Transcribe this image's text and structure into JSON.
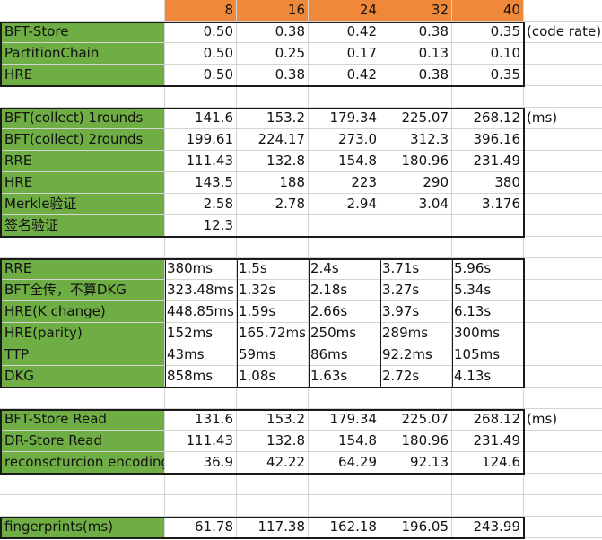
{
  "header_values": [
    "8",
    "16",
    "24",
    "32",
    "40"
  ],
  "rows": [
    {
      "label": "",
      "values": [],
      "note": "",
      "style": "header"
    },
    {
      "label": "BFT-Store",
      "values": [
        "0.50",
        "0.38",
        "0.42",
        "0.38",
        "0.35"
      ],
      "note": "(code rate)",
      "style": "num"
    },
    {
      "label": "PartitionChain",
      "values": [
        "0.50",
        "0.25",
        "0.17",
        "0.13",
        "0.10"
      ],
      "note": "",
      "style": "num"
    },
    {
      "label": "HRE",
      "values": [
        "0.50",
        "0.38",
        "0.42",
        "0.38",
        "0.35"
      ],
      "note": "",
      "style": "num"
    },
    {
      "label": "",
      "values": [],
      "note": "",
      "style": "blank"
    },
    {
      "label": "BFT(collect)  1rounds",
      "values": [
        "141.6",
        "153.2",
        "179.34",
        "225.07",
        "268.12"
      ],
      "note": "(ms)",
      "style": "num"
    },
    {
      "label": "BFT(collect)  2rounds",
      "values": [
        "199.61",
        "224.17",
        "273.0",
        "312.3",
        "396.16"
      ],
      "note": "",
      "style": "num"
    },
    {
      "label": "RRE",
      "values": [
        "111.43",
        "132.8",
        "154.8",
        "180.96",
        "231.49"
      ],
      "note": "",
      "style": "num"
    },
    {
      "label": "HRE",
      "values": [
        "143.5",
        "188",
        "223",
        "290",
        "380"
      ],
      "note": "",
      "style": "num"
    },
    {
      "label": "Merkle验证",
      "values": [
        "2.58",
        "2.78",
        "2.94",
        "3.04",
        "3.176"
      ],
      "note": "",
      "style": "num"
    },
    {
      "label": "签名验证",
      "values": [
        "12.3",
        "",
        "",
        "",
        ""
      ],
      "note": "",
      "style": "num"
    },
    {
      "label": "",
      "values": [],
      "note": "",
      "style": "blank"
    },
    {
      "label": "RRE",
      "values": [
        "380ms",
        "1.5s",
        "2.4s",
        "3.71s",
        "5.96s"
      ],
      "note": "",
      "style": "txt"
    },
    {
      "label": "BFT全传，不算DKG",
      "values": [
        "323.48ms",
        "1.32s",
        "2.18s",
        "3.27s",
        "5.34s"
      ],
      "note": "",
      "style": "txt"
    },
    {
      "label": "HRE(K change)",
      "values": [
        "448.85ms",
        "1.59s",
        "2.66s",
        "3.97s",
        "6.13s"
      ],
      "note": "",
      "style": "txt"
    },
    {
      "label": "HRE(parity)",
      "values": [
        "152ms",
        "165.72ms",
        "250ms",
        "289ms",
        "300ms"
      ],
      "note": "",
      "style": "txt"
    },
    {
      "label": "TTP",
      "values": [
        "43ms",
        "59ms",
        "86ms",
        "92.2ms",
        "105ms"
      ],
      "note": "",
      "style": "txt"
    },
    {
      "label": "DKG",
      "values": [
        "858ms",
        "1.08s",
        "1.63s",
        "2.72s",
        "4.13s"
      ],
      "note": "",
      "style": "txt"
    },
    {
      "label": "",
      "values": [],
      "note": "",
      "style": "blank"
    },
    {
      "label": "BFT-Store Read",
      "values": [
        "131.6",
        "153.2",
        "179.34",
        "225.07",
        "268.12"
      ],
      "note": "(ms)",
      "style": "num"
    },
    {
      "label": "DR-Store Read",
      "values": [
        "111.43",
        "132.8",
        "154.8",
        "180.96",
        "231.49"
      ],
      "note": "",
      "style": "num"
    },
    {
      "label": "reconscturcion encoding",
      "values": [
        "36.9",
        "42.22",
        "64.29",
        "92.13",
        "124.6"
      ],
      "note": "",
      "style": "num"
    },
    {
      "label": "",
      "values": [],
      "note": "",
      "style": "blank"
    },
    {
      "label": "",
      "values": [],
      "note": "",
      "style": "blank"
    },
    {
      "label": "fingerprints(ms)",
      "values": [
        "61.78",
        "117.38",
        "162.18",
        "196.05",
        "243.99"
      ],
      "note": "",
      "style": "num"
    }
  ],
  "colors": {
    "label_fill": "#6fae45",
    "header_fill": "#f0883a",
    "border": "#1a1a1a",
    "grid": "#d4d4d4"
  }
}
